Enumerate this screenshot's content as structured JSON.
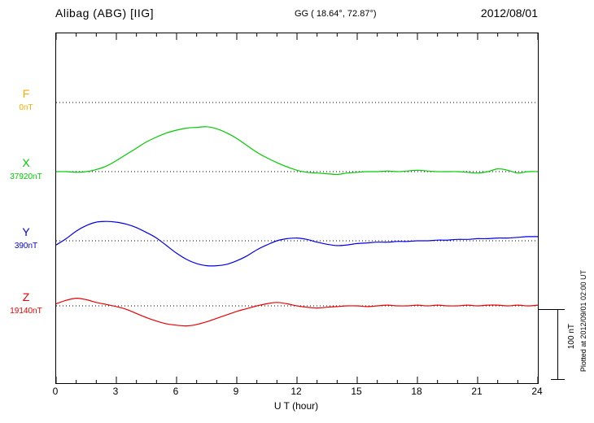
{
  "header": {
    "station_title": "Alibag (ABG)  [IIG]",
    "coordinates": "GG ( 18.64°,  72.87°)",
    "date": "2012/08/01"
  },
  "footer_note": "Plotted at 2012/09/01 02:00 UT",
  "axis": {
    "x_label": "U T (hour)",
    "x_ticks": [
      "0",
      "3",
      "6",
      "9",
      "12",
      "15",
      "18",
      "21",
      "24"
    ]
  },
  "scale_bar": {
    "label": "100 nT",
    "nT": 100
  },
  "components": [
    {
      "id": "F",
      "label": "F",
      "baseline_label": "0nT",
      "color": "#ffaa00",
      "baseline_nT": 0,
      "trace_visible": false
    },
    {
      "id": "X",
      "label": "X",
      "baseline_label": "37920nT",
      "color": "#00cc00",
      "baseline_nT": 37920,
      "trace_visible": true
    },
    {
      "id": "Y",
      "label": "Y",
      "baseline_label": "390nT",
      "color": "#0000ee",
      "baseline_nT": 390,
      "trace_visible": true
    },
    {
      "id": "Z",
      "label": "Z",
      "baseline_label": "19140nT",
      "color": "#ee0000",
      "baseline_nT": 19140,
      "trace_visible": true
    }
  ],
  "chart_data": {
    "type": "line",
    "title": "Alibag (ABG) [IIG] magnetogram 2012/08/01",
    "xlabel": "U T (hour)",
    "ylabel": "nT",
    "x_range_hours": [
      0,
      24
    ],
    "x_tick_step_hours": 3,
    "scale_bar_nT": 100,
    "grid": "dotted horizontal baseline per component",
    "legend_position": "left baselines",
    "x_hours": [
      0,
      0.5,
      1,
      1.5,
      2,
      2.5,
      3,
      3.5,
      4,
      4.5,
      5,
      5.5,
      6,
      6.5,
      7,
      7.5,
      8,
      8.5,
      9,
      9.5,
      10,
      10.5,
      11,
      11.5,
      12,
      12.5,
      13,
      13.5,
      14,
      14.5,
      15,
      15.5,
      16,
      16.5,
      17,
      17.5,
      18,
      18.5,
      19,
      19.5,
      20,
      20.5,
      21,
      21.5,
      22,
      22.5,
      23,
      23.5,
      24
    ],
    "series": [
      {
        "name": "F",
        "unit": "nT",
        "baseline_nT": 0,
        "color": "#ffaa00",
        "values_nT": null
      },
      {
        "name": "X",
        "unit": "nT",
        "baseline_nT": 37920,
        "color": "#00cc00",
        "values_nT": [
          37920,
          37920,
          37919,
          37920,
          37923,
          37928,
          37936,
          37945,
          37954,
          37963,
          37970,
          37976,
          37980,
          37983,
          37984,
          37985,
          37982,
          37976,
          37968,
          37958,
          37948,
          37940,
          37933,
          37927,
          37922,
          37919,
          37918,
          37917,
          37916,
          37918,
          37919,
          37920,
          37920,
          37921,
          37920,
          37921,
          37922,
          37921,
          37920,
          37920,
          37920,
          37919,
          37918,
          37920,
          37924,
          37922,
          37918,
          37920,
          37920
        ]
      },
      {
        "name": "Y",
        "unit": "nT",
        "baseline_nT": 390,
        "color": "#0000ee",
        "values_nT": [
          384,
          393,
          404,
          412,
          417,
          418,
          417,
          414,
          409,
          402,
          394,
          383,
          372,
          363,
          357,
          354,
          354,
          356,
          361,
          368,
          377,
          384,
          390,
          393,
          394,
          392,
          388,
          385,
          383,
          384,
          386,
          387,
          388,
          388,
          389,
          389,
          390,
          390,
          391,
          391,
          392,
          392,
          393,
          393,
          394,
          394,
          395,
          396,
          396
        ]
      },
      {
        "name": "Z",
        "unit": "nT",
        "baseline_nT": 19140,
        "color": "#ee0000",
        "values_nT": [
          19143,
          19148,
          19151,
          19149,
          19145,
          19142,
          19139,
          19135,
          19129,
          19123,
          19118,
          19114,
          19112,
          19111,
          19113,
          19117,
          19122,
          19127,
          19132,
          19136,
          19140,
          19143,
          19145,
          19143,
          19140,
          19138,
          19137,
          19138,
          19139,
          19140,
          19140,
          19139,
          19140,
          19141,
          19140,
          19140,
          19141,
          19140,
          19141,
          19140,
          19140,
          19141,
          19140,
          19141,
          19141,
          19140,
          19141,
          19140,
          19141
        ]
      }
    ]
  }
}
